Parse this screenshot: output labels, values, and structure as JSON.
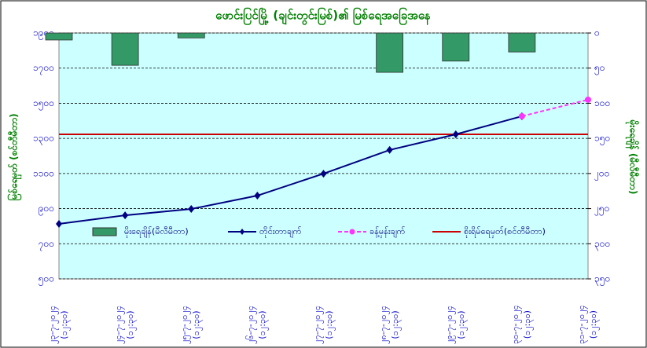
{
  "chart_data": {
    "type": "combo",
    "title": "ဖောင်းပြင်မြို့ (ချင်းတွင်းမြစ်)၏ မြစ်ရေအခြေအနေ",
    "ylabel": "မြစ်ရေမှတ် (စင်တီမီတာ)",
    "y2label": "မိုးရေချိန် (မီလီမီတာ)",
    "categories": [
      "၂၃-၇-၂၀၂၄\n(၁၂:၃၀)",
      "၂၄-၇-၂၀၂၄\n(၁၂:၃၀)",
      "၂၅-၇-၂၀၂၄\n(၁၂:၃၀)",
      "၂၆-၇-၂၀၂၄\n(၁၂:၃၀)",
      "၂၇-၇-၂၀၂၄\n(၁၂:၃၀)",
      "၂၈-၇-၂၀၂၄\n(၁၂:၃၀)",
      "၂၉-၇-၂၀၂၄\n(၁၂:၃၀)",
      "၃၀-၇-၂၀၂၄\n(၁၂:၃၀)",
      "၃၁-၇-၂၀၂၄\n(၁၂:၃၀)"
    ],
    "ylim": [
      500,
      1900
    ],
    "yticks": [
      {
        "value": 500,
        "label": "၅၀၀"
      },
      {
        "value": 700,
        "label": "၇၀၀"
      },
      {
        "value": 900,
        "label": "၉၀၀"
      },
      {
        "value": 1100,
        "label": "၁၁၀၀"
      },
      {
        "value": 1300,
        "label": "၁၃၀၀"
      },
      {
        "value": 1500,
        "label": "၁၅၀၀"
      },
      {
        "value": 1700,
        "label": "၁၇၀၀"
      },
      {
        "value": 1900,
        "label": "၁၉၀၀"
      }
    ],
    "y2lim": [
      350,
      0
    ],
    "y2ticks": [
      {
        "value": 0,
        "label": "၀"
      },
      {
        "value": 50,
        "label": "၅၀"
      },
      {
        "value": 100,
        "label": "၁၀၀"
      },
      {
        "value": 150,
        "label": "၁၅၀"
      },
      {
        "value": 200,
        "label": "၂၀၀"
      },
      {
        "value": 250,
        "label": "၂၅၀"
      },
      {
        "value": 300,
        "label": "၃၀၀"
      },
      {
        "value": 350,
        "label": "၃၅၀"
      }
    ],
    "grid": true,
    "series": [
      {
        "name": "မိုးရေချိန်(မီလီမီတာ)",
        "type": "bar",
        "axis": "y2",
        "color": "#339966",
        "values": [
          10,
          46,
          7,
          null,
          null,
          56,
          40,
          27,
          null
        ]
      },
      {
        "name": "တိုင်းတာချက်",
        "type": "line",
        "color": "#000080",
        "values": [
          813,
          862,
          898,
          974,
          1099,
          1234,
          1323,
          1426,
          null
        ]
      },
      {
        "name": "ခန့်မှန်းချက်",
        "type": "dashed",
        "color": "#ff33ff",
        "values": [
          null,
          null,
          null,
          null,
          null,
          null,
          null,
          1426,
          1520
        ]
      }
    ],
    "danger": {
      "name": "စိုးရိမ်ရေမှတ်(စင်တီမီတာ)",
      "color": "#cc0000",
      "value": 1323
    }
  }
}
